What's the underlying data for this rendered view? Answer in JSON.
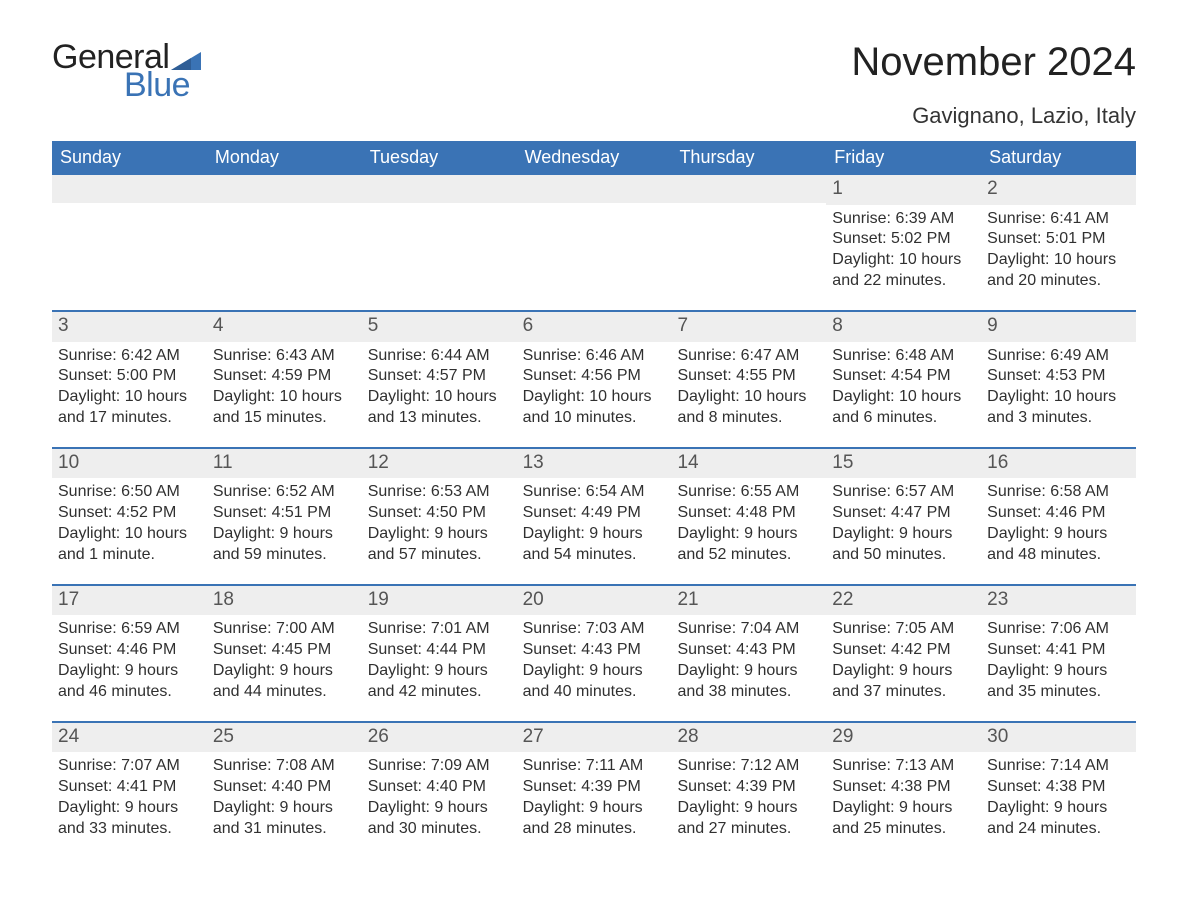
{
  "colors": {
    "brand_blue": "#3a73b5",
    "header_bg": "#3a73b5",
    "header_text": "#ffffff",
    "daynum_bg": "#eeeeee",
    "body_text": "#303030",
    "title_text": "#222222"
  },
  "logo": {
    "text1": "General",
    "text2": "Blue"
  },
  "title": {
    "month_year": "November 2024",
    "location": "Gavignano, Lazio, Italy"
  },
  "day_names": [
    "Sunday",
    "Monday",
    "Tuesday",
    "Wednesday",
    "Thursday",
    "Friday",
    "Saturday"
  ],
  "weeks": [
    [
      {
        "blank": true
      },
      {
        "blank": true
      },
      {
        "blank": true
      },
      {
        "blank": true
      },
      {
        "blank": true
      },
      {
        "n": "1",
        "sunrise": "Sunrise: 6:39 AM",
        "sunset": "Sunset: 5:02 PM",
        "daylight": "Daylight: 10 hours and 22 minutes."
      },
      {
        "n": "2",
        "sunrise": "Sunrise: 6:41 AM",
        "sunset": "Sunset: 5:01 PM",
        "daylight": "Daylight: 10 hours and 20 minutes."
      }
    ],
    [
      {
        "n": "3",
        "sunrise": "Sunrise: 6:42 AM",
        "sunset": "Sunset: 5:00 PM",
        "daylight": "Daylight: 10 hours and 17 minutes."
      },
      {
        "n": "4",
        "sunrise": "Sunrise: 6:43 AM",
        "sunset": "Sunset: 4:59 PM",
        "daylight": "Daylight: 10 hours and 15 minutes."
      },
      {
        "n": "5",
        "sunrise": "Sunrise: 6:44 AM",
        "sunset": "Sunset: 4:57 PM",
        "daylight": "Daylight: 10 hours and 13 minutes."
      },
      {
        "n": "6",
        "sunrise": "Sunrise: 6:46 AM",
        "sunset": "Sunset: 4:56 PM",
        "daylight": "Daylight: 10 hours and 10 minutes."
      },
      {
        "n": "7",
        "sunrise": "Sunrise: 6:47 AM",
        "sunset": "Sunset: 4:55 PM",
        "daylight": "Daylight: 10 hours and 8 minutes."
      },
      {
        "n": "8",
        "sunrise": "Sunrise: 6:48 AM",
        "sunset": "Sunset: 4:54 PM",
        "daylight": "Daylight: 10 hours and 6 minutes."
      },
      {
        "n": "9",
        "sunrise": "Sunrise: 6:49 AM",
        "sunset": "Sunset: 4:53 PM",
        "daylight": "Daylight: 10 hours and 3 minutes."
      }
    ],
    [
      {
        "n": "10",
        "sunrise": "Sunrise: 6:50 AM",
        "sunset": "Sunset: 4:52 PM",
        "daylight": "Daylight: 10 hours and 1 minute."
      },
      {
        "n": "11",
        "sunrise": "Sunrise: 6:52 AM",
        "sunset": "Sunset: 4:51 PM",
        "daylight": "Daylight: 9 hours and 59 minutes."
      },
      {
        "n": "12",
        "sunrise": "Sunrise: 6:53 AM",
        "sunset": "Sunset: 4:50 PM",
        "daylight": "Daylight: 9 hours and 57 minutes."
      },
      {
        "n": "13",
        "sunrise": "Sunrise: 6:54 AM",
        "sunset": "Sunset: 4:49 PM",
        "daylight": "Daylight: 9 hours and 54 minutes."
      },
      {
        "n": "14",
        "sunrise": "Sunrise: 6:55 AM",
        "sunset": "Sunset: 4:48 PM",
        "daylight": "Daylight: 9 hours and 52 minutes."
      },
      {
        "n": "15",
        "sunrise": "Sunrise: 6:57 AM",
        "sunset": "Sunset: 4:47 PM",
        "daylight": "Daylight: 9 hours and 50 minutes."
      },
      {
        "n": "16",
        "sunrise": "Sunrise: 6:58 AM",
        "sunset": "Sunset: 4:46 PM",
        "daylight": "Daylight: 9 hours and 48 minutes."
      }
    ],
    [
      {
        "n": "17",
        "sunrise": "Sunrise: 6:59 AM",
        "sunset": "Sunset: 4:46 PM",
        "daylight": "Daylight: 9 hours and 46 minutes."
      },
      {
        "n": "18",
        "sunrise": "Sunrise: 7:00 AM",
        "sunset": "Sunset: 4:45 PM",
        "daylight": "Daylight: 9 hours and 44 minutes."
      },
      {
        "n": "19",
        "sunrise": "Sunrise: 7:01 AM",
        "sunset": "Sunset: 4:44 PM",
        "daylight": "Daylight: 9 hours and 42 minutes."
      },
      {
        "n": "20",
        "sunrise": "Sunrise: 7:03 AM",
        "sunset": "Sunset: 4:43 PM",
        "daylight": "Daylight: 9 hours and 40 minutes."
      },
      {
        "n": "21",
        "sunrise": "Sunrise: 7:04 AM",
        "sunset": "Sunset: 4:43 PM",
        "daylight": "Daylight: 9 hours and 38 minutes."
      },
      {
        "n": "22",
        "sunrise": "Sunrise: 7:05 AM",
        "sunset": "Sunset: 4:42 PM",
        "daylight": "Daylight: 9 hours and 37 minutes."
      },
      {
        "n": "23",
        "sunrise": "Sunrise: 7:06 AM",
        "sunset": "Sunset: 4:41 PM",
        "daylight": "Daylight: 9 hours and 35 minutes."
      }
    ],
    [
      {
        "n": "24",
        "sunrise": "Sunrise: 7:07 AM",
        "sunset": "Sunset: 4:41 PM",
        "daylight": "Daylight: 9 hours and 33 minutes."
      },
      {
        "n": "25",
        "sunrise": "Sunrise: 7:08 AM",
        "sunset": "Sunset: 4:40 PM",
        "daylight": "Daylight: 9 hours and 31 minutes."
      },
      {
        "n": "26",
        "sunrise": "Sunrise: 7:09 AM",
        "sunset": "Sunset: 4:40 PM",
        "daylight": "Daylight: 9 hours and 30 minutes."
      },
      {
        "n": "27",
        "sunrise": "Sunrise: 7:11 AM",
        "sunset": "Sunset: 4:39 PM",
        "daylight": "Daylight: 9 hours and 28 minutes."
      },
      {
        "n": "28",
        "sunrise": "Sunrise: 7:12 AM",
        "sunset": "Sunset: 4:39 PM",
        "daylight": "Daylight: 9 hours and 27 minutes."
      },
      {
        "n": "29",
        "sunrise": "Sunrise: 7:13 AM",
        "sunset": "Sunset: 4:38 PM",
        "daylight": "Daylight: 9 hours and 25 minutes."
      },
      {
        "n": "30",
        "sunrise": "Sunrise: 7:14 AM",
        "sunset": "Sunset: 4:38 PM",
        "daylight": "Daylight: 9 hours and 24 minutes."
      }
    ]
  ]
}
